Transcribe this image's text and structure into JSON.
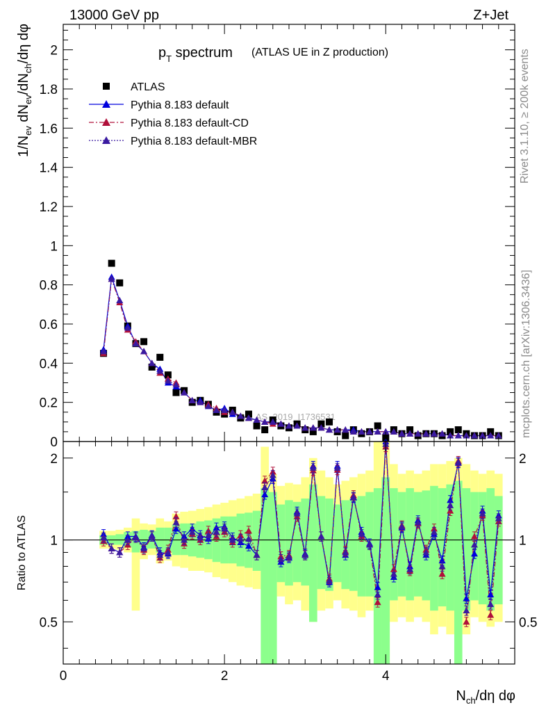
{
  "header": {
    "left": "13000 GeV pp",
    "right": "Z+Jet"
  },
  "side_labels": {
    "rivet": "Rivet 3.1.10, ≥ 200k events",
    "mcplots": "mcplots.cern.ch [arXiv:1306.3436]"
  },
  "watermark": "ATLAS_2019_I1736531",
  "chart_data": [
    {
      "type": "scatter",
      "panel": "main",
      "title_main": "p",
      "title_sub": "T",
      "title_rest": " spectrum",
      "subtitle": "(ATLAS UE in Z production)",
      "ylabel": "1/N_ev dN_ev/dN_ch/dη dφ",
      "xlim": [
        0,
        5.6
      ],
      "ylim": [
        0,
        2.13
      ],
      "yticks": [
        0,
        0.2,
        0.4,
        0.6,
        0.8,
        1,
        1.2,
        1.4,
        1.6,
        1.8,
        2
      ],
      "ytick_labels": [
        "0",
        "0.2",
        "0.4",
        "0.6",
        "0.8",
        "1",
        "1.2",
        "1.4",
        "1.6",
        "1.8",
        "2"
      ],
      "x": [
        0.5,
        0.6,
        0.7,
        0.8,
        0.9,
        1.0,
        1.1,
        1.2,
        1.3,
        1.4,
        1.5,
        1.6,
        1.7,
        1.8,
        1.9,
        2.0,
        2.1,
        2.2,
        2.3,
        2.4,
        2.5,
        2.6,
        2.7,
        2.8,
        2.9,
        3.0,
        3.1,
        3.2,
        3.3,
        3.4,
        3.5,
        3.6,
        3.7,
        3.8,
        3.9,
        4.0,
        4.1,
        4.2,
        4.3,
        4.4,
        4.5,
        4.6,
        4.7,
        4.8,
        4.9,
        5.0,
        5.1,
        5.2,
        5.3,
        5.4
      ],
      "series": [
        {
          "name": "ATLAS",
          "style": "square",
          "color": "#000000",
          "values": [
            0.45,
            0.91,
            0.81,
            0.59,
            0.5,
            0.51,
            0.38,
            0.43,
            0.34,
            0.25,
            0.26,
            0.2,
            0.21,
            0.19,
            0.15,
            0.14,
            0.16,
            0.12,
            0.14,
            0.08,
            0.06,
            0.11,
            0.08,
            0.07,
            0.09,
            0.06,
            0.05,
            0.09,
            0.1,
            0.05,
            0.03,
            0.06,
            0.04,
            0.05,
            0.08,
            0.02,
            0.06,
            0.04,
            0.06,
            0.03,
            0.04,
            0.04,
            0.03,
            0.05,
            0.06,
            0.04,
            0.03,
            0.03,
            0.05,
            0.03
          ]
        },
        {
          "name": "Pythia 8.183 default",
          "style": "solid",
          "color": "#0000dd",
          "values": [
            0.47,
            0.84,
            0.72,
            0.59,
            0.5,
            0.46,
            0.4,
            0.37,
            0.3,
            0.28,
            0.25,
            0.21,
            0.21,
            0.18,
            0.16,
            0.17,
            0.14,
            0.13,
            0.12,
            0.11,
            0.1,
            0.1,
            0.09,
            0.08,
            0.08,
            0.07,
            0.07,
            0.07,
            0.06,
            0.06,
            0.06,
            0.06,
            0.05,
            0.05,
            0.05,
            0.05,
            0.05,
            0.04,
            0.04,
            0.04,
            0.04,
            0.04,
            0.04,
            0.03,
            0.03,
            0.03,
            0.03,
            0.03,
            0.03,
            0.03
          ]
        },
        {
          "name": "Pythia 8.183 default-CD",
          "style": "dashdot",
          "color": "#b0103a",
          "values": [
            0.45,
            0.83,
            0.71,
            0.57,
            0.51,
            0.46,
            0.4,
            0.35,
            0.32,
            0.3,
            0.25,
            0.21,
            0.2,
            0.19,
            0.17,
            0.15,
            0.15,
            0.13,
            0.12,
            0.11,
            0.1,
            0.09,
            0.09,
            0.08,
            0.08,
            0.07,
            0.07,
            0.07,
            0.06,
            0.06,
            0.06,
            0.05,
            0.05,
            0.05,
            0.05,
            0.05,
            0.05,
            0.04,
            0.04,
            0.04,
            0.04,
            0.04,
            0.04,
            0.03,
            0.03,
            0.03,
            0.03,
            0.03,
            0.03,
            0.03
          ]
        },
        {
          "name": "Pythia 8.183 default-MBR",
          "style": "dotted",
          "color": "#3a1aa0",
          "values": [
            0.46,
            0.83,
            0.72,
            0.58,
            0.5,
            0.46,
            0.4,
            0.36,
            0.31,
            0.29,
            0.25,
            0.21,
            0.2,
            0.18,
            0.16,
            0.16,
            0.15,
            0.13,
            0.12,
            0.11,
            0.1,
            0.1,
            0.09,
            0.08,
            0.08,
            0.07,
            0.07,
            0.07,
            0.06,
            0.06,
            0.06,
            0.05,
            0.05,
            0.05,
            0.05,
            0.05,
            0.05,
            0.04,
            0.04,
            0.04,
            0.04,
            0.04,
            0.04,
            0.03,
            0.03,
            0.03,
            0.03,
            0.03,
            0.03,
            0.03
          ]
        }
      ]
    },
    {
      "type": "scatter",
      "panel": "ratio",
      "ylabel": "Ratio to ATLAS",
      "xlabel": "N_ch/dη dφ",
      "xlim": [
        0,
        5.6
      ],
      "ylim": [
        0.35,
        2.3
      ],
      "yscale": "log",
      "xticks": [
        0,
        2,
        4
      ],
      "xtick_labels": [
        "0",
        "2",
        "4"
      ],
      "yticks": [
        0.5,
        1,
        2
      ],
      "ytick_labels": [
        "0.5",
        "1",
        "2"
      ],
      "x": [
        0.5,
        0.6,
        0.7,
        0.8,
        0.9,
        1.0,
        1.1,
        1.2,
        1.3,
        1.4,
        1.5,
        1.6,
        1.7,
        1.8,
        1.9,
        2.0,
        2.1,
        2.2,
        2.3,
        2.4,
        2.5,
        2.6,
        2.7,
        2.8,
        2.9,
        3.0,
        3.1,
        3.2,
        3.3,
        3.4,
        3.5,
        3.6,
        3.7,
        3.8,
        3.9,
        4.0,
        4.1,
        4.2,
        4.3,
        4.4,
        4.5,
        4.6,
        4.7,
        4.8,
        4.9,
        5.0,
        5.1,
        5.2,
        5.3,
        5.4
      ],
      "band_yellow": [
        [
          0.93,
          1.08
        ],
        [
          0.93,
          1.08
        ],
        [
          0.92,
          1.09
        ],
        [
          0.9,
          1.11
        ],
        [
          0.55,
          1.2
        ],
        [
          0.85,
          1.15
        ],
        [
          0.88,
          1.14
        ],
        [
          0.82,
          1.2
        ],
        [
          0.84,
          1.17
        ],
        [
          0.8,
          1.25
        ],
        [
          0.79,
          1.27
        ],
        [
          0.77,
          1.28
        ],
        [
          0.77,
          1.3
        ],
        [
          0.76,
          1.32
        ],
        [
          0.73,
          1.35
        ],
        [
          0.72,
          1.37
        ],
        [
          0.7,
          1.4
        ],
        [
          0.68,
          1.42
        ],
        [
          0.67,
          1.45
        ],
        [
          0.66,
          1.48
        ],
        [
          0.6,
          2.2
        ],
        [
          0.55,
          1.75
        ],
        [
          0.62,
          1.58
        ],
        [
          0.58,
          1.62
        ],
        [
          0.6,
          1.6
        ],
        [
          0.55,
          1.7
        ],
        [
          0.5,
          2.0
        ],
        [
          0.55,
          1.8
        ],
        [
          0.56,
          1.7
        ],
        [
          0.6,
          1.6
        ],
        [
          0.56,
          1.65
        ],
        [
          0.55,
          1.7
        ],
        [
          0.52,
          1.75
        ],
        [
          0.55,
          1.8
        ],
        [
          0.45,
          2.3
        ],
        [
          0.35,
          2.3
        ],
        [
          0.5,
          1.9
        ],
        [
          0.52,
          1.75
        ],
        [
          0.5,
          1.8
        ],
        [
          0.52,
          1.75
        ],
        [
          0.5,
          1.8
        ],
        [
          0.45,
          1.9
        ],
        [
          0.48,
          1.9
        ],
        [
          0.45,
          1.95
        ],
        [
          0.5,
          2.0
        ],
        [
          0.45,
          1.9
        ],
        [
          0.52,
          1.8
        ],
        [
          0.5,
          1.75
        ],
        [
          0.48,
          1.8
        ],
        [
          0.5,
          1.75
        ]
      ],
      "band_green": [
        [
          0.96,
          1.04
        ],
        [
          0.96,
          1.04
        ],
        [
          0.96,
          1.05
        ],
        [
          0.94,
          1.07
        ],
        [
          0.9,
          1.08
        ],
        [
          0.92,
          1.09
        ],
        [
          0.93,
          1.08
        ],
        [
          0.9,
          1.11
        ],
        [
          0.9,
          1.11
        ],
        [
          0.88,
          1.14
        ],
        [
          0.88,
          1.15
        ],
        [
          0.87,
          1.15
        ],
        [
          0.86,
          1.17
        ],
        [
          0.85,
          1.18
        ],
        [
          0.83,
          1.2
        ],
        [
          0.82,
          1.22
        ],
        [
          0.82,
          1.22
        ],
        [
          0.8,
          1.25
        ],
        [
          0.79,
          1.26
        ],
        [
          0.77,
          1.28
        ],
        [
          0.35,
          1.55
        ],
        [
          0.35,
          1.5
        ],
        [
          0.7,
          1.35
        ],
        [
          0.68,
          1.4
        ],
        [
          0.7,
          1.38
        ],
        [
          0.68,
          1.42
        ],
        [
          0.5,
          1.6
        ],
        [
          0.66,
          1.45
        ],
        [
          0.65,
          1.42
        ],
        [
          0.7,
          1.35
        ],
        [
          0.66,
          1.4
        ],
        [
          0.65,
          1.42
        ],
        [
          0.62,
          1.45
        ],
        [
          0.62,
          1.5
        ],
        [
          0.35,
          1.55
        ],
        [
          0.35,
          1.7
        ],
        [
          0.6,
          1.55
        ],
        [
          0.62,
          1.5
        ],
        [
          0.6,
          1.55
        ],
        [
          0.62,
          1.5
        ],
        [
          0.6,
          1.52
        ],
        [
          0.55,
          1.58
        ],
        [
          0.57,
          1.55
        ],
        [
          0.55,
          1.6
        ],
        [
          0.35,
          1.65
        ],
        [
          0.55,
          1.55
        ],
        [
          0.6,
          1.5
        ],
        [
          0.58,
          1.5
        ],
        [
          0.55,
          1.55
        ],
        [
          0.58,
          1.45
        ]
      ],
      "series": [
        {
          "name": "Pythia 8.183 default",
          "color": "#0000dd",
          "values": [
            1.05,
            0.93,
            0.9,
            1.03,
            1.03,
            0.94,
            1.04,
            0.9,
            0.89,
            1.1,
            1.03,
            1.1,
            1.04,
            1.01,
            1.11,
            1.12,
            1.02,
            0.98,
            0.95,
            0.88,
            1.47,
            1.68,
            0.83,
            0.86,
            1.27,
            0.89,
            1.87,
            1.03,
            0.7,
            1.87,
            0.88,
            1.43,
            1.07,
            0.97,
            0.67,
            2.3,
            0.73,
            1.11,
            0.8,
            1.18,
            0.88,
            1.05,
            0.84,
            1.4,
            1.92,
            0.61,
            0.89,
            1.28,
            0.63,
            1.23
          ]
        },
        {
          "name": "Pythia 8.183 default-CD",
          "color": "#b0103a",
          "values": [
            0.99,
            0.93,
            0.9,
            0.96,
            1.02,
            0.92,
            1.03,
            0.86,
            0.92,
            1.22,
            0.97,
            1.05,
            1.0,
            1.08,
            1.03,
            1.07,
            0.98,
            1.04,
            1.08,
            0.88,
            1.65,
            1.78,
            0.87,
            0.88,
            1.22,
            0.88,
            1.8,
            1.03,
            0.72,
            1.81,
            0.91,
            1.46,
            1.03,
            0.96,
            0.59,
            2.2,
            0.78,
            1.13,
            0.77,
            1.15,
            0.92,
            1.1,
            0.75,
            1.28,
            1.95,
            0.5,
            1.03,
            1.23,
            0.53,
            1.17
          ]
        },
        {
          "name": "Pythia 8.183 default-MBR",
          "color": "#3a1aa0",
          "values": [
            1.02,
            0.93,
            0.9,
            1.0,
            1.02,
            0.93,
            1.03,
            0.88,
            0.9,
            1.16,
            1.0,
            1.07,
            1.02,
            1.04,
            1.07,
            1.1,
            1.0,
            1.01,
            1.01,
            0.88,
            1.56,
            1.73,
            0.85,
            0.87,
            1.25,
            0.88,
            1.84,
            1.03,
            0.71,
            1.84,
            0.9,
            1.44,
            1.05,
            0.96,
            0.63,
            2.25,
            0.75,
            1.12,
            0.78,
            1.16,
            0.9,
            1.07,
            0.8,
            1.34,
            1.93,
            0.55,
            0.96,
            1.25,
            0.58,
            1.2
          ]
        }
      ]
    }
  ]
}
